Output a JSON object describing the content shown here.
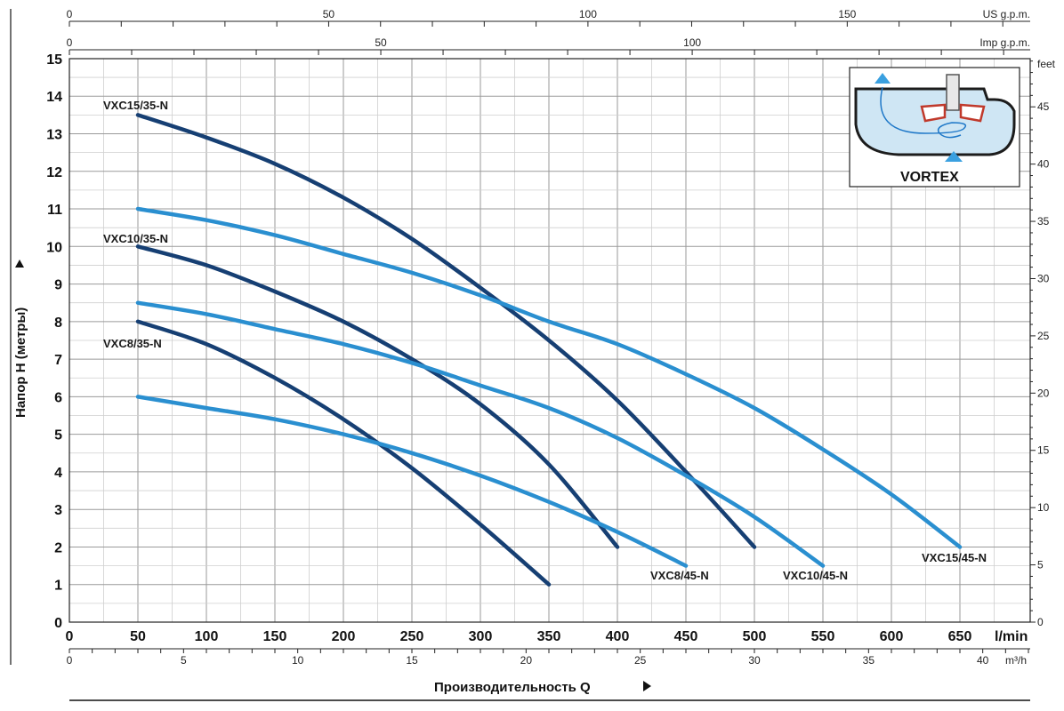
{
  "chart_data": {
    "type": "line",
    "title": "",
    "ylabel": "Напор H (метры)",
    "xlabel": "Производительность Q",
    "x_unit": "l/min",
    "xlim": [
      0,
      700
    ],
    "ylim": [
      0,
      15
    ],
    "x_ticks": [
      0,
      50,
      100,
      150,
      200,
      250,
      300,
      350,
      400,
      450,
      500,
      550,
      600,
      650
    ],
    "y_ticks": [
      0,
      1,
      2,
      3,
      4,
      5,
      6,
      7,
      8,
      9,
      10,
      11,
      12,
      13,
      14,
      15
    ],
    "grid": true,
    "secondary_axes": {
      "us_gpm": {
        "unit": "US g.p.m.",
        "ticks": [
          0,
          50,
          100,
          150
        ]
      },
      "imp_gpm": {
        "unit": "Imp g.p.m.",
        "ticks": [
          0,
          50,
          100
        ]
      },
      "feet": {
        "unit": "feet",
        "ticks": [
          0,
          5,
          10,
          15,
          20,
          25,
          30,
          35,
          40,
          45
        ]
      },
      "m3h": {
        "unit": "m³/h",
        "ticks": [
          0,
          5,
          10,
          15,
          20,
          25,
          30,
          35,
          40
        ]
      }
    },
    "series": [
      {
        "name": "VXC15/35-N",
        "color": "#163f73",
        "x": [
          50,
          100,
          150,
          200,
          250,
          300,
          350,
          400,
          450,
          500
        ],
        "y": [
          13.5,
          12.9,
          12.2,
          11.3,
          10.2,
          8.9,
          7.5,
          5.9,
          4.0,
          2.0
        ]
      },
      {
        "name": "VXC10/35-N",
        "color": "#163f73",
        "x": [
          50,
          100,
          150,
          200,
          250,
          300,
          350,
          400
        ],
        "y": [
          10.0,
          9.5,
          8.8,
          8.0,
          7.0,
          5.8,
          4.2,
          2.0
        ]
      },
      {
        "name": "VXC8/35-N",
        "color": "#163f73",
        "x": [
          50,
          100,
          150,
          200,
          250,
          300,
          350
        ],
        "y": [
          8.0,
          7.4,
          6.5,
          5.4,
          4.1,
          2.6,
          1.0
        ]
      },
      {
        "name": "VXC15/45-N",
        "color": "#2a8fd0",
        "x": [
          50,
          100,
          150,
          200,
          250,
          300,
          350,
          400,
          450,
          500,
          550,
          600,
          650
        ],
        "y": [
          11.0,
          10.7,
          10.3,
          9.8,
          9.3,
          8.7,
          8.0,
          7.4,
          6.6,
          5.7,
          4.6,
          3.4,
          2.0
        ]
      },
      {
        "name": "VXC10/45-N",
        "color": "#2a8fd0",
        "x": [
          50,
          100,
          150,
          200,
          250,
          300,
          350,
          400,
          450,
          500,
          550
        ],
        "y": [
          8.5,
          8.2,
          7.8,
          7.4,
          6.9,
          6.3,
          5.7,
          4.9,
          3.9,
          2.8,
          1.5
        ]
      },
      {
        "name": "VXC8/45-N",
        "color": "#2a8fd0",
        "x": [
          50,
          100,
          150,
          200,
          250,
          300,
          350,
          400,
          450
        ],
        "y": [
          6.0,
          5.7,
          5.4,
          5.0,
          4.5,
          3.9,
          3.2,
          2.4,
          1.5
        ]
      }
    ]
  },
  "inset": {
    "label": "VORTEX"
  },
  "colors": {
    "dark_curve": "#163f73",
    "light_curve": "#2a8fd0",
    "grid": "#9a9a9a",
    "grid_minor": "#cfcfcf"
  }
}
